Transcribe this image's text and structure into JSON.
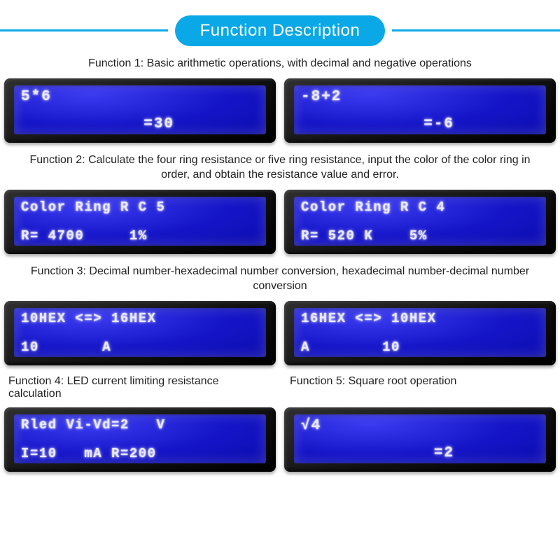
{
  "banner": {
    "title": "Function Description"
  },
  "colors": {
    "accent": "#0aa8e6",
    "lcd_bg_center": "#1515c8",
    "lcd_bg_edge": "#0808a0",
    "lcd_text": "#e9e9ff",
    "bezel": "#121212",
    "page_bg": "#ffffff",
    "body_text": "#222222"
  },
  "typography": {
    "banner_fontsize": 24,
    "caption_fontsize": 16,
    "lcd_font": "Courier New, monospace",
    "lcd_fontsize": 21
  },
  "captions": {
    "f1": "Function 1: Basic arithmetic operations, with decimal and negative operations",
    "f2": "Function 2: Calculate the four ring resistance or five ring resistance, input the color of the color ring in order, and obtain the resistance value and error.",
    "f3": "Function 3: Decimal number-hexadecimal number conversion, hexadecimal number-decimal number conversion",
    "f4": "Function 4: LED current limiting resistance calculation",
    "f5": "Function 5: Square root operation"
  },
  "lcds": {
    "r1a": {
      "line1": "5*6",
      "line2": "            =30"
    },
    "r1b": {
      "line1": "-8+2",
      "line2": "            =-6"
    },
    "r2a": {
      "line1": "Color Ring R C 5",
      "line2": "R= 4700     1%"
    },
    "r2b": {
      "line1": "Color Ring R C 4",
      "line2": "R= 520 K    5%"
    },
    "r3a": {
      "line1": "10HEX <=> 16HEX",
      "line2": "10       A"
    },
    "r3b": {
      "line1": "16HEX <=> 10HEX",
      "line2": "A        10"
    },
    "r4a": {
      "line1": "Rled Vi-Vd=2   V",
      "line2": "I=10   mA R=200"
    },
    "r4b": {
      "line1": "√4",
      "line2": "             =2"
    }
  }
}
